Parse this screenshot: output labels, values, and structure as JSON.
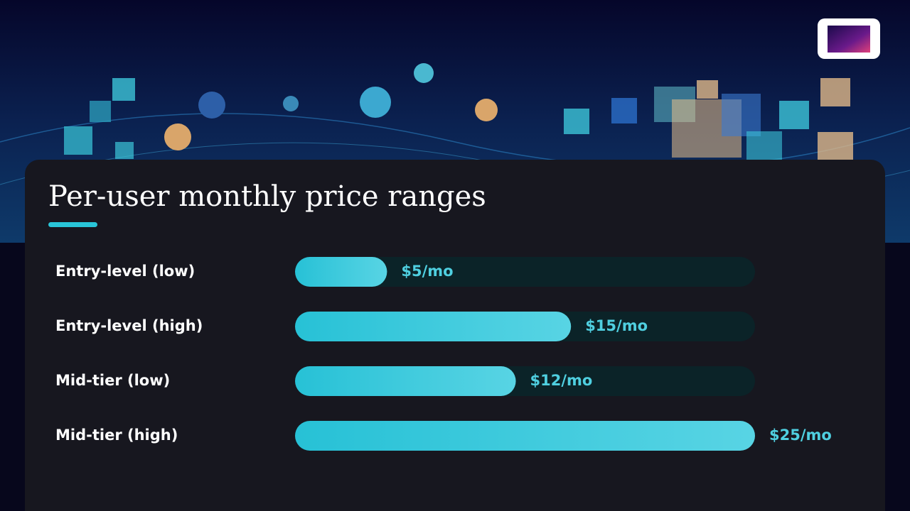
{
  "chart_data": {
    "type": "bar",
    "orientation": "horizontal",
    "title": "Per-user monthly price ranges",
    "categories": [
      "Entry-level (low)",
      "Entry-level (high)",
      "Mid-tier (low)",
      "Mid-tier (high)"
    ],
    "values": [
      5,
      15,
      12,
      25
    ],
    "value_labels": [
      "$5/mo",
      "$15/mo",
      "$12/mo",
      "$25/mo"
    ],
    "color": "#2fc6da",
    "xlim": [
      0,
      25
    ]
  }
}
